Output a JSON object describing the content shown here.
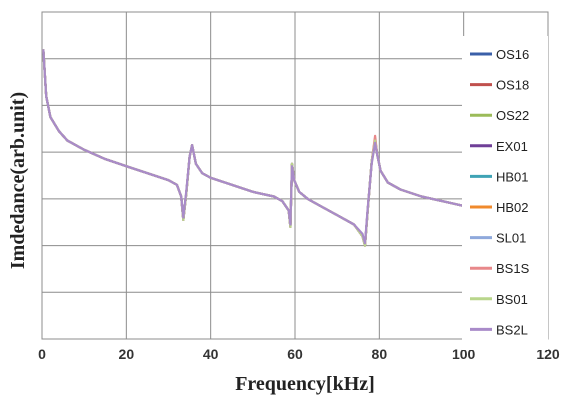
{
  "chart_data": {
    "type": "line",
    "xlabel": "Frequency[kHz]",
    "ylabel": "Imdedance(arb.unit)",
    "xlim": [
      0,
      120
    ],
    "x_ticks": [
      0,
      20,
      40,
      60,
      80,
      100,
      120
    ],
    "y_tick_labels": false,
    "grid": true,
    "legend_position": "right",
    "y_scale_note": "arbitrary units, 0 = bottom of plot, 7 = top",
    "ylim": [
      0,
      7
    ],
    "x": [
      0.3,
      1,
      2,
      4,
      6,
      10,
      15,
      20,
      25,
      30,
      32,
      33,
      33.5,
      34.2,
      35,
      35.6,
      36.5,
      38,
      40,
      45,
      50,
      55,
      57,
      58.5,
      58.9,
      59.3,
      59.8,
      61,
      63,
      66,
      70,
      74,
      76,
      76.6,
      77.2,
      78.2,
      79,
      79.5,
      80.3,
      82,
      85,
      90,
      95,
      100
    ],
    "series": [
      {
        "name": "OS16",
        "color": "#3a5fa8",
        "values": [
          6.2,
          5.2,
          4.75,
          4.45,
          4.25,
          4.05,
          3.85,
          3.7,
          3.55,
          3.4,
          3.3,
          3.05,
          2.55,
          3.1,
          3.9,
          4.15,
          3.75,
          3.55,
          3.45,
          3.3,
          3.15,
          3.05,
          2.95,
          2.75,
          2.4,
          3.75,
          3.4,
          3.15,
          3.0,
          2.85,
          2.65,
          2.45,
          2.2,
          2.0,
          2.7,
          3.8,
          4.25,
          3.95,
          3.6,
          3.35,
          3.2,
          3.05,
          2.95,
          2.85
        ]
      },
      {
        "name": "OS18",
        "color": "#c0504d",
        "values": [
          6.2,
          5.2,
          4.75,
          4.45,
          4.25,
          4.05,
          3.85,
          3.7,
          3.55,
          3.4,
          3.3,
          3.05,
          2.55,
          3.1,
          3.9,
          4.15,
          3.75,
          3.55,
          3.45,
          3.3,
          3.15,
          3.05,
          2.95,
          2.75,
          2.4,
          3.75,
          3.4,
          3.15,
          3.0,
          2.85,
          2.65,
          2.45,
          2.2,
          2.0,
          2.7,
          3.8,
          4.3,
          3.95,
          3.6,
          3.35,
          3.2,
          3.05,
          2.95,
          2.85
        ]
      },
      {
        "name": "OS22",
        "color": "#9bbb59",
        "values": [
          6.2,
          5.2,
          4.75,
          4.45,
          4.25,
          4.05,
          3.85,
          3.7,
          3.55,
          3.4,
          3.3,
          3.05,
          2.55,
          3.1,
          3.9,
          4.15,
          3.75,
          3.55,
          3.45,
          3.3,
          3.15,
          3.05,
          2.95,
          2.75,
          2.4,
          3.75,
          3.4,
          3.15,
          3.0,
          2.85,
          2.65,
          2.45,
          2.2,
          2.0,
          2.7,
          3.8,
          4.2,
          3.95,
          3.6,
          3.35,
          3.2,
          3.05,
          2.95,
          2.85
        ]
      },
      {
        "name": "EX01",
        "color": "#6f3f97",
        "values": [
          6.2,
          5.2,
          4.75,
          4.45,
          4.25,
          4.05,
          3.85,
          3.7,
          3.55,
          3.4,
          3.3,
          3.05,
          2.55,
          3.1,
          3.9,
          4.15,
          3.75,
          3.55,
          3.45,
          3.3,
          3.15,
          3.05,
          2.95,
          2.75,
          2.4,
          3.75,
          3.4,
          3.15,
          3.0,
          2.85,
          2.65,
          2.45,
          2.2,
          2.0,
          2.7,
          3.8,
          4.25,
          3.95,
          3.6,
          3.35,
          3.2,
          3.05,
          2.95,
          2.85
        ]
      },
      {
        "name": "HB01",
        "color": "#3fa3b5",
        "values": [
          6.2,
          5.2,
          4.75,
          4.45,
          4.25,
          4.05,
          3.85,
          3.7,
          3.55,
          3.4,
          3.3,
          3.05,
          2.55,
          3.1,
          3.9,
          4.15,
          3.75,
          3.55,
          3.45,
          3.3,
          3.15,
          3.05,
          2.95,
          2.75,
          2.4,
          3.75,
          3.4,
          3.15,
          3.0,
          2.85,
          2.65,
          2.45,
          2.2,
          2.0,
          2.7,
          3.8,
          4.25,
          3.95,
          3.6,
          3.35,
          3.2,
          3.05,
          2.95,
          2.85
        ]
      },
      {
        "name": "HB02",
        "color": "#f08a2c",
        "values": [
          6.2,
          5.2,
          4.75,
          4.45,
          4.25,
          4.05,
          3.85,
          3.7,
          3.55,
          3.4,
          3.3,
          3.05,
          2.55,
          3.1,
          3.9,
          4.15,
          3.75,
          3.55,
          3.45,
          3.3,
          3.15,
          3.05,
          2.95,
          2.75,
          2.4,
          3.75,
          3.4,
          3.15,
          3.0,
          2.85,
          2.65,
          2.45,
          2.2,
          2.0,
          2.7,
          3.8,
          4.25,
          3.95,
          3.6,
          3.35,
          3.2,
          3.05,
          2.95,
          2.85
        ]
      },
      {
        "name": "SL01",
        "color": "#8fa9dc",
        "values": [
          6.2,
          5.2,
          4.75,
          4.45,
          4.25,
          4.05,
          3.85,
          3.7,
          3.55,
          3.4,
          3.3,
          3.05,
          2.55,
          3.1,
          3.9,
          4.15,
          3.75,
          3.55,
          3.45,
          3.3,
          3.15,
          3.05,
          2.95,
          2.75,
          2.4,
          3.75,
          3.4,
          3.15,
          3.0,
          2.85,
          2.65,
          2.45,
          2.2,
          2.0,
          2.7,
          3.8,
          4.25,
          3.95,
          3.6,
          3.35,
          3.2,
          3.05,
          2.95,
          2.85
        ]
      },
      {
        "name": "BS1S",
        "color": "#e8888a",
        "values": [
          6.2,
          5.2,
          4.75,
          4.45,
          4.25,
          4.05,
          3.85,
          3.7,
          3.55,
          3.4,
          3.3,
          3.05,
          2.55,
          3.1,
          3.9,
          4.15,
          3.75,
          3.55,
          3.45,
          3.3,
          3.15,
          3.05,
          2.95,
          2.75,
          2.4,
          3.75,
          3.4,
          3.15,
          3.0,
          2.85,
          2.65,
          2.45,
          2.2,
          2.0,
          2.7,
          3.8,
          4.35,
          3.95,
          3.6,
          3.35,
          3.2,
          3.05,
          2.95,
          2.85
        ]
      },
      {
        "name": "BS01",
        "color": "#b9d68c",
        "values": [
          6.2,
          5.2,
          4.75,
          4.45,
          4.25,
          4.05,
          3.85,
          3.7,
          3.55,
          3.4,
          3.3,
          3.05,
          2.55,
          3.1,
          3.9,
          4.15,
          3.75,
          3.55,
          3.45,
          3.3,
          3.15,
          3.05,
          2.95,
          2.75,
          2.4,
          3.75,
          3.4,
          3.15,
          3.0,
          2.85,
          2.65,
          2.45,
          2.2,
          2.0,
          2.7,
          3.8,
          4.25,
          3.95,
          3.6,
          3.35,
          3.2,
          3.05,
          2.95,
          2.85
        ]
      },
      {
        "name": "BS2L",
        "color": "#a98bc9",
        "values": [
          6.2,
          5.2,
          4.75,
          4.45,
          4.25,
          4.05,
          3.85,
          3.7,
          3.55,
          3.4,
          3.3,
          3.05,
          2.6,
          3.15,
          3.9,
          4.15,
          3.75,
          3.55,
          3.45,
          3.3,
          3.15,
          3.05,
          2.95,
          2.75,
          2.45,
          3.7,
          3.4,
          3.15,
          3.0,
          2.85,
          2.65,
          2.45,
          2.25,
          2.05,
          2.75,
          3.75,
          4.2,
          3.95,
          3.6,
          3.35,
          3.2,
          3.05,
          2.95,
          2.85
        ]
      }
    ]
  }
}
